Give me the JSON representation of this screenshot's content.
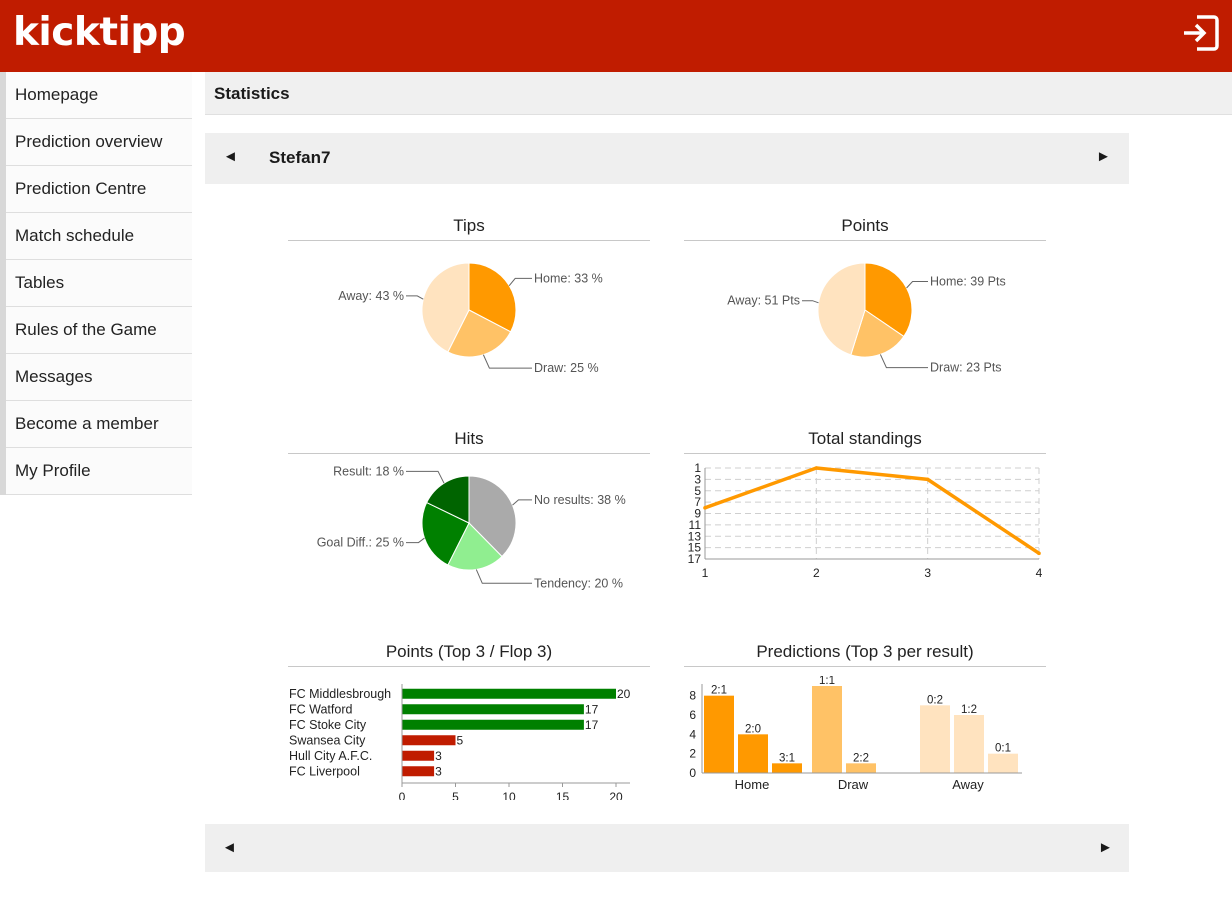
{
  "app": {
    "logo": "kicktipp"
  },
  "sidebar": {
    "items": [
      {
        "label": "Homepage"
      },
      {
        "label": "Prediction overview"
      },
      {
        "label": "Prediction Centre"
      },
      {
        "label": "Match schedule"
      },
      {
        "label": "Tables"
      },
      {
        "label": "Rules of the Game"
      },
      {
        "label": "Messages"
      },
      {
        "label": "Become a member"
      },
      {
        "label": "My Profile"
      }
    ]
  },
  "header": {
    "title": "Statistics"
  },
  "user_nav": {
    "prev": "◄",
    "name": "Stefan7",
    "next": "►"
  },
  "bottom_nav": {
    "prev": "◄",
    "next": "►"
  },
  "colors": {
    "brand": "#c01c00",
    "orange": "#ff9900",
    "orange_light": "#ffc266",
    "orange_pale": "#ffe3bf",
    "green_dark": "#006400",
    "green": "#008000",
    "green_light": "#90ee90",
    "grey": "#aaaaaa",
    "red": "#c01c00"
  },
  "chart_data": [
    {
      "type": "pie",
      "title": "Tips",
      "slices": [
        {
          "name": "Home",
          "value": 33,
          "label": "Home: 33 %"
        },
        {
          "name": "Draw",
          "value": 25,
          "label": "Draw: 25 %"
        },
        {
          "name": "Away",
          "value": 43,
          "label": "Away: 43 %"
        }
      ]
    },
    {
      "type": "pie",
      "title": "Points",
      "slices": [
        {
          "name": "Home",
          "value": 39,
          "label": "Home: 39 Pts"
        },
        {
          "name": "Draw",
          "value": 23,
          "label": "Draw: 23 Pts"
        },
        {
          "name": "Away",
          "value": 51,
          "label": "Away: 51 Pts"
        }
      ]
    },
    {
      "type": "pie",
      "title": "Hits",
      "slices": [
        {
          "name": "No results",
          "value": 38,
          "label": "No results: 38 %"
        },
        {
          "name": "Tendency",
          "value": 20,
          "label": "Tendency: 20 %"
        },
        {
          "name": "Goal Diff.",
          "value": 25,
          "label": "Goal Diff.: 25 %"
        },
        {
          "name": "Result",
          "value": 18,
          "label": "Result: 18 %"
        }
      ]
    },
    {
      "type": "line",
      "title": "Total standings",
      "x": [
        1,
        2,
        3,
        4
      ],
      "y": [
        8,
        1,
        3,
        16
      ],
      "yticks": [
        "1",
        "3",
        "5",
        "7",
        "9",
        "11",
        "13",
        "15",
        "17"
      ],
      "xticks": [
        "1",
        "2",
        "3",
        "4"
      ],
      "ylim": [
        1,
        17
      ],
      "y_inverted": true,
      "grid": true
    },
    {
      "type": "bar",
      "orientation": "horizontal",
      "title": "Points (Top 3 / Flop 3)",
      "categories": [
        "FC Middlesbrough",
        "FC Watford",
        "FC Stoke City",
        "Swansea City",
        "Hull City A.F.C.",
        "FC Liverpool"
      ],
      "values": [
        20,
        17,
        17,
        5,
        3,
        3
      ],
      "value_labels": [
        "20",
        "17",
        "17",
        "5",
        "3",
        "3"
      ],
      "groups": [
        "top",
        "top",
        "top",
        "flop",
        "flop",
        "flop"
      ],
      "xticks": [
        "0",
        "5",
        "10",
        "15",
        "20"
      ],
      "xlim": [
        0,
        22
      ]
    },
    {
      "type": "bar",
      "title": "Predictions (Top 3 per result)",
      "groups": [
        {
          "name": "Home",
          "bars": [
            {
              "label": "2:1",
              "value": 8
            },
            {
              "label": "2:0",
              "value": 4
            },
            {
              "label": "3:1",
              "value": 1
            }
          ]
        },
        {
          "name": "Draw",
          "bars": [
            {
              "label": "1:1",
              "value": 9
            },
            {
              "label": "2:2",
              "value": 1
            }
          ]
        },
        {
          "name": "Away",
          "bars": [
            {
              "label": "0:2",
              "value": 7
            },
            {
              "label": "1:2",
              "value": 6
            },
            {
              "label": "0:1",
              "value": 2
            }
          ]
        }
      ],
      "yticks": [
        "0",
        "2",
        "4",
        "6",
        "8"
      ],
      "ylim": [
        0,
        9
      ]
    }
  ]
}
